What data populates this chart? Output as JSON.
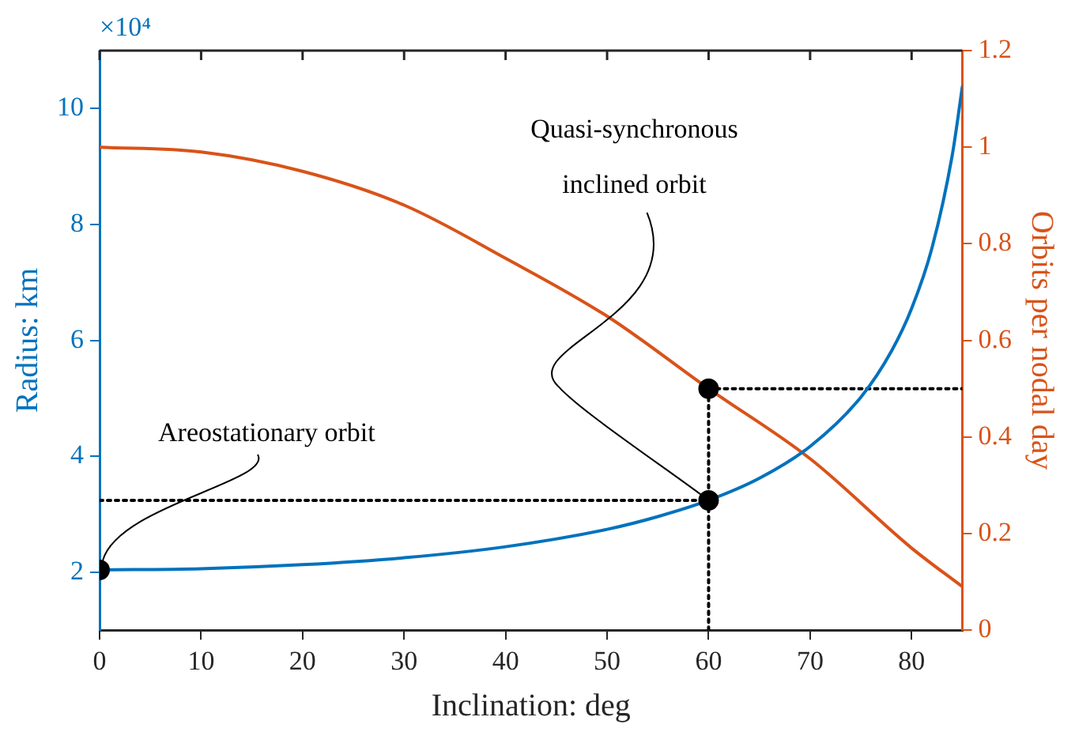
{
  "chart_data": {
    "type": "line",
    "xlabel": "Inclination: deg",
    "ylabel": "Radius: km",
    "y2label": "Orbits per nodal day",
    "xlim": [
      0,
      85
    ],
    "xticks": [
      0,
      10,
      20,
      30,
      40,
      50,
      60,
      70,
      80
    ],
    "ylim": [
      1,
      11
    ],
    "yticks": [
      2,
      4,
      6,
      8,
      10
    ],
    "y2lim": [
      0,
      1.2
    ],
    "y2ticks": [
      0,
      0.2,
      0.4,
      0.6,
      0.8,
      1,
      1.2
    ],
    "grid": false,
    "legend": false,
    "annotations": [
      "×10⁴",
      {
        "text": "Areostationary orbit",
        "x": 0,
        "y": 2.04
      },
      {
        "text": "Quasi-synchronous inclined orbit",
        "x": 60,
        "y": 3.24
      }
    ],
    "series": [
      {
        "axis": "y",
        "color": "#0072bd",
        "marker": "none",
        "line_style": "solid",
        "x": [
          0,
          10,
          20,
          30,
          40,
          50,
          55,
          60,
          65,
          70,
          75,
          78,
          80,
          82,
          84,
          85
        ],
        "values": [
          2.04,
          2.06,
          2.13,
          2.25,
          2.44,
          2.74,
          2.96,
          3.24,
          3.62,
          4.17,
          5.02,
          5.81,
          6.55,
          7.59,
          9.19,
          10.38
        ]
      },
      {
        "axis": "y2",
        "color": "#d95319",
        "marker": "none",
        "line_style": "solid",
        "x": [
          0,
          10,
          20,
          30,
          40,
          50,
          60,
          70,
          80,
          85
        ],
        "values": [
          1.0,
          0.99,
          0.95,
          0.88,
          0.77,
          0.65,
          0.5,
          0.355,
          0.17,
          0.09
        ]
      },
      {
        "axis": "y",
        "color": "#000000",
        "marker": "none",
        "line_style": "dotted",
        "x": [
          0,
          60
        ],
        "values": [
          3.24,
          3.24
        ]
      },
      {
        "axis": "y2",
        "color": "#000000",
        "marker": "none",
        "line_style": "dotted",
        "x": [
          60,
          60
        ],
        "values": [
          0,
          0.5
        ]
      },
      {
        "axis": "y2",
        "color": "#000000",
        "marker": "none",
        "line_style": "dotted",
        "x": [
          60,
          85
        ],
        "values": [
          0.5,
          0.5
        ]
      },
      {
        "type": "scatter",
        "axis": "y",
        "color": "#000000",
        "marker": "circle",
        "x": [
          0,
          60
        ],
        "values": [
          2.04,
          3.24
        ]
      },
      {
        "type": "scatter",
        "axis": "y2",
        "color": "#000000",
        "marker": "circle",
        "x": [
          60
        ],
        "values": [
          0.5
        ]
      }
    ]
  }
}
